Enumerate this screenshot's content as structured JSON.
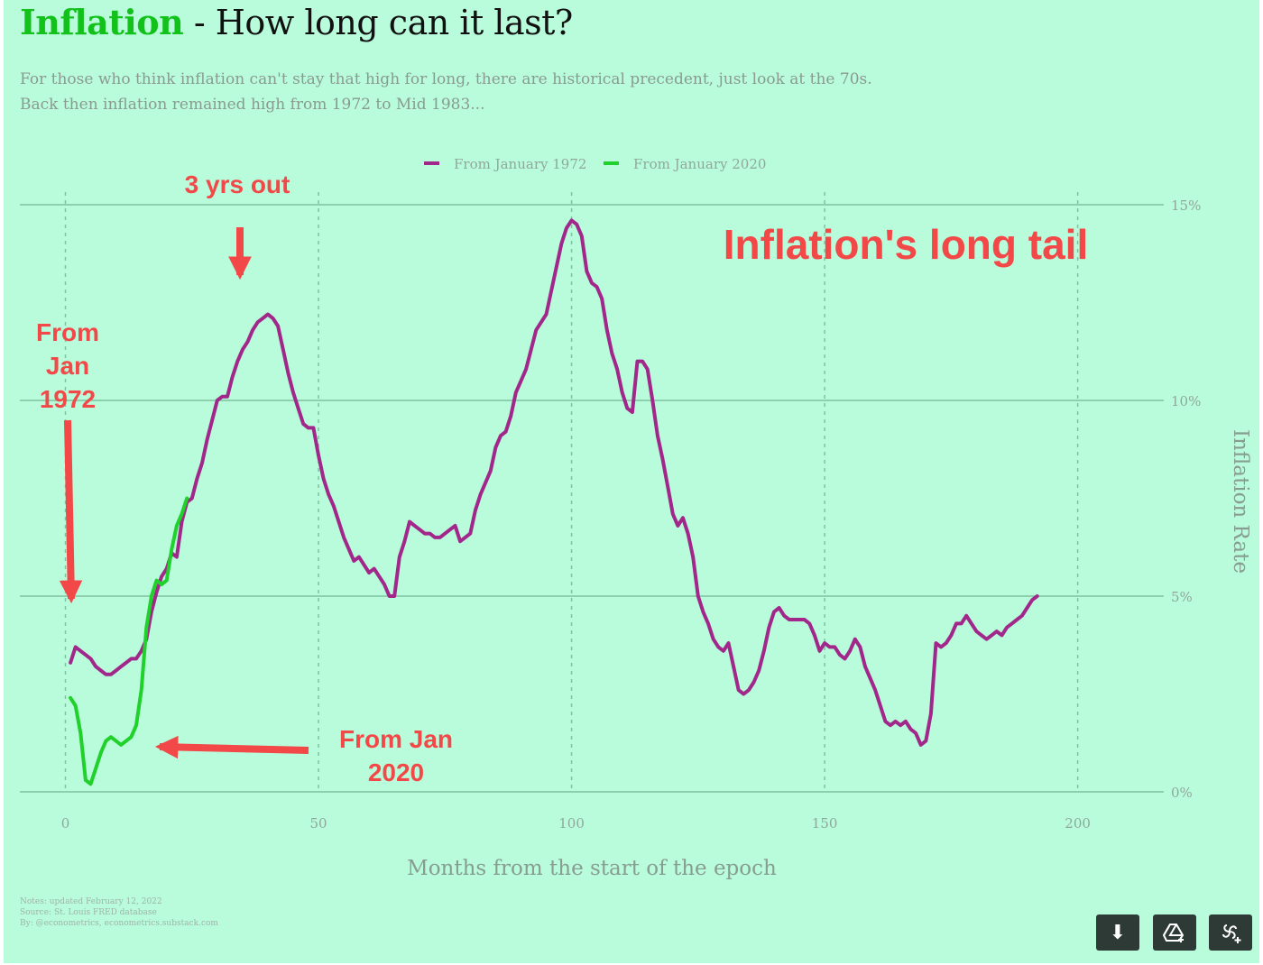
{
  "header": {
    "title_highlight": "Inflation",
    "title_rest": " - How long can it last?",
    "subtitle_line1": "For those who think inflation can't stay that high for long, there are historical precedent, just look at the 70s.",
    "subtitle_line2": "Back then inflation remained high from 1972 to Mid 1983..."
  },
  "chart_data": {
    "type": "line",
    "xlabel": "Months from the start of the epoch",
    "ylabel": "Inflation Rate",
    "xlim": [
      -9,
      217
    ],
    "ylim": [
      0,
      15
    ],
    "x_ticks": [
      "0",
      "50",
      "100",
      "150",
      "200"
    ],
    "y_ticks": [
      "0%",
      "5%",
      "10%",
      "15%"
    ],
    "legend_position": "top-center",
    "grid": "horizontal solid, vertical dashed",
    "series": [
      {
        "name": "From January 1972",
        "color": "#a1278a",
        "points": [
          [
            1,
            3.3
          ],
          [
            2,
            3.7
          ],
          [
            3,
            3.6
          ],
          [
            4,
            3.5
          ],
          [
            5,
            3.4
          ],
          [
            6,
            3.2
          ],
          [
            7,
            3.1
          ],
          [
            8,
            3.0
          ],
          [
            9,
            3.0
          ],
          [
            10,
            3.1
          ],
          [
            11,
            3.2
          ],
          [
            12,
            3.3
          ],
          [
            13,
            3.4
          ],
          [
            14,
            3.4
          ],
          [
            15,
            3.6
          ],
          [
            16,
            3.9
          ],
          [
            17,
            4.6
          ],
          [
            18,
            5.1
          ],
          [
            19,
            5.5
          ],
          [
            20,
            5.7
          ],
          [
            21,
            6.1
          ],
          [
            22,
            6.0
          ],
          [
            23,
            6.9
          ],
          [
            24,
            7.4
          ],
          [
            25,
            7.5
          ],
          [
            26,
            8.0
          ],
          [
            27,
            8.4
          ],
          [
            28,
            9.0
          ],
          [
            29,
            9.5
          ],
          [
            30,
            10.0
          ],
          [
            31,
            10.1
          ],
          [
            32,
            10.1
          ],
          [
            33,
            10.6
          ],
          [
            34,
            11.0
          ],
          [
            35,
            11.3
          ],
          [
            36,
            11.5
          ],
          [
            37,
            11.8
          ],
          [
            38,
            12.0
          ],
          [
            39,
            12.1
          ],
          [
            40,
            12.2
          ],
          [
            41,
            12.1
          ],
          [
            42,
            11.9
          ],
          [
            43,
            11.3
          ],
          [
            44,
            10.7
          ],
          [
            45,
            10.2
          ],
          [
            46,
            9.8
          ],
          [
            47,
            9.4
          ],
          [
            48,
            9.3
          ],
          [
            49,
            9.3
          ],
          [
            50,
            8.6
          ],
          [
            51,
            8.0
          ],
          [
            52,
            7.6
          ],
          [
            53,
            7.3
          ],
          [
            54,
            6.9
          ],
          [
            55,
            6.5
          ],
          [
            56,
            6.2
          ],
          [
            57,
            5.9
          ],
          [
            58,
            6.0
          ],
          [
            59,
            5.8
          ],
          [
            60,
            5.6
          ],
          [
            61,
            5.7
          ],
          [
            62,
            5.5
          ],
          [
            63,
            5.3
          ],
          [
            64,
            5.0
          ],
          [
            65,
            5.0
          ],
          [
            66,
            6.0
          ],
          [
            67,
            6.4
          ],
          [
            68,
            6.9
          ],
          [
            69,
            6.8
          ],
          [
            70,
            6.7
          ],
          [
            71,
            6.6
          ],
          [
            72,
            6.6
          ],
          [
            73,
            6.5
          ],
          [
            74,
            6.5
          ],
          [
            75,
            6.6
          ],
          [
            76,
            6.7
          ],
          [
            77,
            6.8
          ],
          [
            78,
            6.4
          ],
          [
            79,
            6.5
          ],
          [
            80,
            6.6
          ],
          [
            81,
            7.2
          ],
          [
            82,
            7.6
          ],
          [
            83,
            7.9
          ],
          [
            84,
            8.2
          ],
          [
            85,
            8.8
          ],
          [
            86,
            9.1
          ],
          [
            87,
            9.2
          ],
          [
            88,
            9.6
          ],
          [
            89,
            10.2
          ],
          [
            90,
            10.5
          ],
          [
            91,
            10.8
          ],
          [
            92,
            11.3
          ],
          [
            93,
            11.8
          ],
          [
            94,
            12.0
          ],
          [
            95,
            12.2
          ],
          [
            96,
            12.8
          ],
          [
            97,
            13.4
          ],
          [
            98,
            14.0
          ],
          [
            99,
            14.4
          ],
          [
            100,
            14.6
          ],
          [
            101,
            14.5
          ],
          [
            102,
            14.2
          ],
          [
            103,
            13.3
          ],
          [
            104,
            13.0
          ],
          [
            105,
            12.9
          ],
          [
            106,
            12.6
          ],
          [
            107,
            11.8
          ],
          [
            108,
            11.2
          ],
          [
            109,
            10.8
          ],
          [
            110,
            10.2
          ],
          [
            111,
            9.8
          ],
          [
            112,
            9.7
          ],
          [
            113,
            11.0
          ],
          [
            114,
            11.0
          ],
          [
            115,
            10.8
          ],
          [
            116,
            10.0
          ],
          [
            117,
            9.1
          ],
          [
            118,
            8.5
          ],
          [
            119,
            7.8
          ],
          [
            120,
            7.1
          ],
          [
            121,
            6.8
          ],
          [
            122,
            7.0
          ],
          [
            123,
            6.6
          ],
          [
            124,
            6.0
          ],
          [
            125,
            5.0
          ],
          [
            126,
            4.6
          ],
          [
            127,
            4.3
          ],
          [
            128,
            3.9
          ],
          [
            129,
            3.7
          ],
          [
            130,
            3.6
          ],
          [
            131,
            3.8
          ],
          [
            132,
            3.2
          ],
          [
            133,
            2.6
          ],
          [
            134,
            2.5
          ],
          [
            135,
            2.6
          ],
          [
            136,
            2.8
          ],
          [
            137,
            3.1
          ],
          [
            138,
            3.6
          ],
          [
            139,
            4.2
          ],
          [
            140,
            4.6
          ],
          [
            141,
            4.7
          ],
          [
            142,
            4.5
          ],
          [
            143,
            4.4
          ],
          [
            144,
            4.4
          ],
          [
            145,
            4.4
          ],
          [
            146,
            4.4
          ],
          [
            147,
            4.3
          ],
          [
            148,
            4.0
          ],
          [
            149,
            3.6
          ],
          [
            150,
            3.8
          ],
          [
            151,
            3.7
          ],
          [
            152,
            3.7
          ],
          [
            153,
            3.5
          ],
          [
            154,
            3.4
          ],
          [
            155,
            3.6
          ],
          [
            156,
            3.9
          ],
          [
            157,
            3.7
          ],
          [
            158,
            3.2
          ],
          [
            159,
            2.9
          ],
          [
            160,
            2.6
          ],
          [
            161,
            2.2
          ],
          [
            162,
            1.8
          ],
          [
            163,
            1.7
          ],
          [
            164,
            1.8
          ],
          [
            165,
            1.7
          ],
          [
            166,
            1.8
          ],
          [
            167,
            1.6
          ],
          [
            168,
            1.5
          ],
          [
            169,
            1.2
          ],
          [
            170,
            1.3
          ],
          [
            171,
            2.0
          ],
          [
            172,
            3.8
          ],
          [
            173,
            3.7
          ],
          [
            174,
            3.8
          ],
          [
            175,
            4.0
          ],
          [
            176,
            4.3
          ],
          [
            177,
            4.3
          ],
          [
            178,
            4.5
          ],
          [
            179,
            4.3
          ],
          [
            180,
            4.1
          ],
          [
            181,
            4.0
          ],
          [
            182,
            3.9
          ],
          [
            183,
            4.0
          ],
          [
            184,
            4.1
          ],
          [
            185,
            4.0
          ],
          [
            186,
            4.2
          ],
          [
            187,
            4.3
          ],
          [
            188,
            4.4
          ],
          [
            189,
            4.5
          ],
          [
            190,
            4.7
          ],
          [
            191,
            4.9
          ],
          [
            192,
            5.0
          ]
        ]
      },
      {
        "name": "From January 2020",
        "color": "#1fd12a",
        "points": [
          [
            1,
            2.4
          ],
          [
            2,
            2.2
          ],
          [
            3,
            1.5
          ],
          [
            4,
            0.3
          ],
          [
            5,
            0.2
          ],
          [
            6,
            0.6
          ],
          [
            7,
            1.0
          ],
          [
            8,
            1.3
          ],
          [
            9,
            1.4
          ],
          [
            10,
            1.3
          ],
          [
            11,
            1.2
          ],
          [
            12,
            1.3
          ],
          [
            13,
            1.4
          ],
          [
            14,
            1.7
          ],
          [
            15,
            2.6
          ],
          [
            16,
            4.2
          ],
          [
            17,
            5.0
          ],
          [
            18,
            5.4
          ],
          [
            19,
            5.3
          ],
          [
            20,
            5.4
          ],
          [
            21,
            6.2
          ],
          [
            22,
            6.8
          ],
          [
            23,
            7.1
          ],
          [
            24,
            7.5
          ]
        ]
      }
    ],
    "annotations": [
      {
        "text": "Inflation's long tail"
      },
      {
        "text": "3 yrs out"
      },
      {
        "text": "From Jan 1972",
        "lines": [
          "From",
          "Jan",
          "1972"
        ]
      },
      {
        "text": "From Jan 2020",
        "lines": [
          "From Jan",
          "2020"
        ]
      }
    ],
    "annotation_color": "#f24848"
  },
  "notes": {
    "line1": "Notes: updated February 12, 2022",
    "line2": "Source: St. Louis FRED database",
    "line3": "By: @econometrics, econometrics.substack.com"
  },
  "toolbar": {
    "download_icon": "download-icon",
    "drive_icon": "drive-add-icon",
    "pin_icon": "pinwheel-icon"
  }
}
